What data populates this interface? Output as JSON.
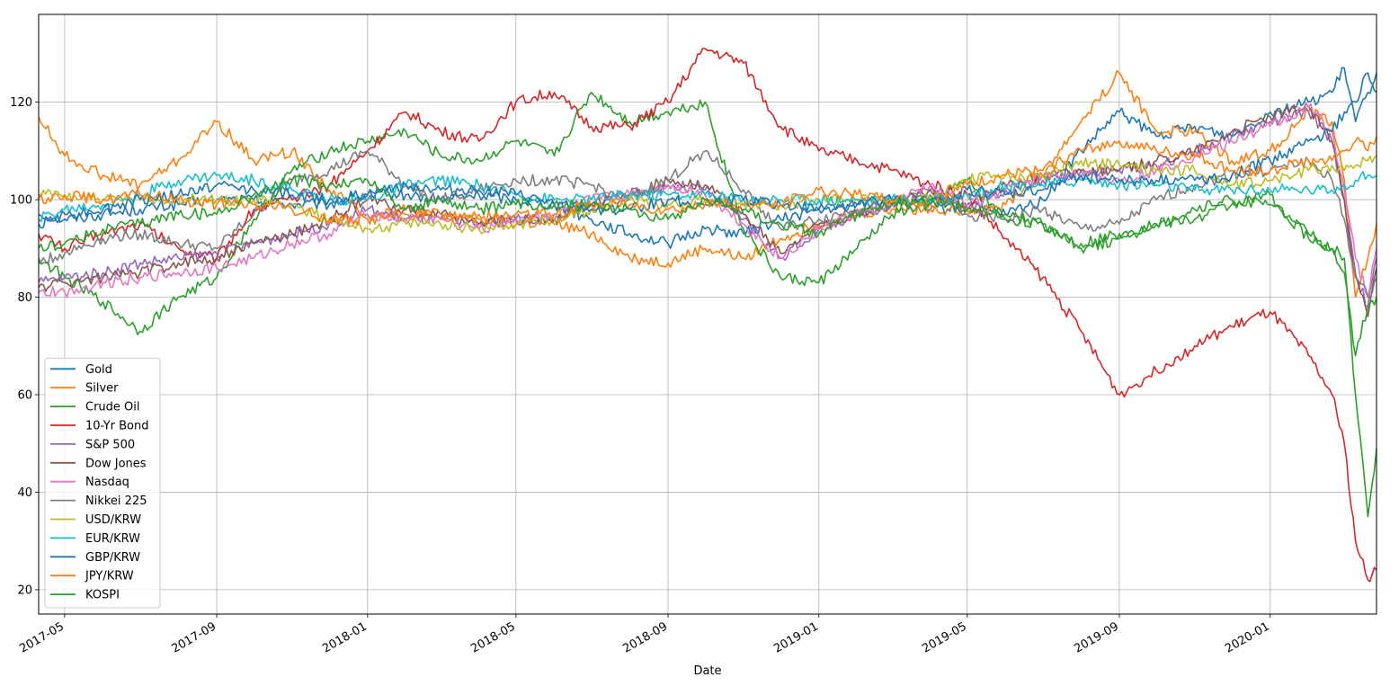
{
  "chart_data": {
    "type": "line",
    "title": "",
    "xlabel": "Date",
    "ylabel": "",
    "x_range": [
      "2017-04-10",
      "2020-03-27"
    ],
    "ylim": [
      15,
      138
    ],
    "grid": true,
    "legend_position": "lower-left",
    "x_ticks": [
      "2017-05",
      "2017-09",
      "2018-01",
      "2018-05",
      "2018-09",
      "2019-01",
      "2019-05",
      "2019-09",
      "2020-01"
    ],
    "y_ticks": [
      20,
      40,
      60,
      80,
      100,
      120
    ],
    "colors": [
      "#1f77b4",
      "#ff7f0e",
      "#2ca02c",
      "#d62728",
      "#9467bd",
      "#8c564b",
      "#e377c2",
      "#7f7f7f",
      "#bcbd22",
      "#17becf",
      "#1f77b4",
      "#ff7f0e",
      "#2ca02c"
    ],
    "dates": [
      "2017-04-10",
      "2017-05-01",
      "2017-06-01",
      "2017-07-01",
      "2017-08-01",
      "2017-09-01",
      "2017-10-01",
      "2017-11-01",
      "2017-12-01",
      "2018-01-01",
      "2018-02-01",
      "2018-03-01",
      "2018-04-01",
      "2018-05-01",
      "2018-06-01",
      "2018-07-01",
      "2018-08-01",
      "2018-09-01",
      "2018-10-01",
      "2018-11-01",
      "2018-12-01",
      "2019-01-01",
      "2019-02-01",
      "2019-03-01",
      "2019-04-01",
      "2019-05-01",
      "2019-06-01",
      "2019-07-01",
      "2019-08-01",
      "2019-09-01",
      "2019-10-01",
      "2019-11-01",
      "2019-12-01",
      "2020-01-01",
      "2020-02-01",
      "2020-02-20",
      "2020-03-01",
      "2020-03-10",
      "2020-03-20",
      "2020-03-27"
    ],
    "series": [
      {
        "name": "Gold",
        "values": [
          97,
          96,
          97,
          98,
          99,
          100,
          100,
          99,
          99,
          101,
          101,
          100,
          101,
          100,
          99,
          96,
          93,
          91,
          94,
          93,
          96,
          98,
          99,
          100,
          98,
          98,
          97,
          100,
          110,
          118,
          113,
          115,
          113,
          118,
          120,
          122,
          127,
          116,
          122,
          126
        ]
      },
      {
        "name": "Silver",
        "values": [
          117,
          109,
          105,
          103,
          108,
          116,
          108,
          110,
          102,
          97,
          98,
          96,
          97,
          95,
          95,
          93,
          88,
          87,
          90,
          88,
          92,
          95,
          97,
          98,
          98,
          98,
          99,
          105,
          116,
          126,
          114,
          114,
          108,
          110,
          118,
          116,
          104,
          80,
          88,
          95
        ]
      },
      {
        "name": "Crude Oil",
        "values": [
          88,
          84,
          79,
          73,
          80,
          84,
          96,
          106,
          110,
          112,
          114,
          109,
          108,
          112,
          109,
          122,
          116,
          118,
          120,
          94,
          84,
          83,
          90,
          97,
          99,
          104,
          96,
          95,
          91,
          93,
          95,
          96,
          99,
          101,
          92,
          90,
          88,
          60,
          35,
          49
        ]
      },
      {
        "name": "10-Yr Bond",
        "values": [
          93,
          90,
          93,
          95,
          90,
          88,
          98,
          100,
          103,
          110,
          118,
          114,
          112,
          120,
          122,
          115,
          115,
          120,
          131,
          128,
          115,
          110,
          108,
          106,
          103,
          101,
          92,
          84,
          73,
          60,
          65,
          70,
          74,
          77,
          68,
          60,
          50,
          30,
          22,
          24
        ]
      },
      {
        "name": "S&P 500",
        "values": [
          83,
          84,
          85,
          87,
          88,
          89,
          91,
          93,
          95,
          98,
          96,
          96,
          95,
          96,
          96,
          99,
          101,
          103,
          102,
          96,
          88,
          94,
          97,
          99,
          102,
          98,
          102,
          104,
          106,
          106,
          107,
          110,
          113,
          116,
          118,
          112,
          100,
          85,
          78,
          88
        ]
      },
      {
        "name": "Dow Jones",
        "values": [
          82,
          83,
          84,
          85,
          87,
          88,
          91,
          93,
          96,
          100,
          98,
          97,
          95,
          96,
          96,
          99,
          101,
          104,
          103,
          97,
          89,
          95,
          97,
          99,
          102,
          99,
          103,
          105,
          106,
          106,
          108,
          110,
          114,
          117,
          119,
          112,
          100,
          84,
          76,
          86
        ]
      },
      {
        "name": "Nasdaq",
        "values": [
          81,
          81,
          83,
          84,
          85,
          86,
          88,
          91,
          93,
          97,
          96,
          96,
          94,
          96,
          97,
          100,
          101,
          103,
          101,
          95,
          88,
          94,
          97,
          99,
          103,
          99,
          102,
          105,
          105,
          104,
          106,
          109,
          112,
          115,
          119,
          114,
          102,
          88,
          80,
          90
        ]
      },
      {
        "name": "Nikkei 225",
        "values": [
          87,
          89,
          92,
          93,
          91,
          90,
          97,
          104,
          106,
          110,
          103,
          100,
          102,
          104,
          104,
          103,
          100,
          104,
          110,
          102,
          94,
          96,
          98,
          99,
          101,
          97,
          96,
          98,
          94,
          95,
          100,
          103,
          105,
          106,
          108,
          104,
          96,
          84,
          80,
          84
        ]
      },
      {
        "name": "USD/KRW",
        "values": [
          101,
          101,
          100,
          100,
          100,
          100,
          100,
          99,
          96,
          94,
          95,
          95,
          94,
          95,
          96,
          98,
          100,
          99,
          100,
          99,
          99,
          100,
          100,
          100,
          100,
          104,
          105,
          105,
          108,
          107,
          106,
          106,
          103,
          104,
          106,
          107,
          106,
          107,
          108,
          109
        ]
      },
      {
        "name": "EUR/KRW",
        "values": [
          96,
          98,
          99,
          101,
          104,
          105,
          104,
          102,
          100,
          100,
          103,
          104,
          103,
          101,
          100,
          100,
          101,
          101,
          101,
          100,
          100,
          100,
          100,
          100,
          100,
          101,
          103,
          103,
          104,
          103,
          103,
          102,
          102,
          102,
          102,
          102,
          103,
          104,
          105,
          105
        ]
      },
      {
        "name": "GBP/KRW",
        "values": [
          95,
          97,
          98,
          100,
          101,
          103,
          102,
          101,
          100,
          101,
          103,
          102,
          102,
          101,
          99,
          98,
          98,
          100,
          99,
          100,
          99,
          98,
          99,
          100,
          99,
          102,
          101,
          102,
          105,
          104,
          104,
          104,
          105,
          108,
          112,
          114,
          118,
          120,
          126,
          122
        ]
      },
      {
        "name": "JPY/KRW",
        "values": [
          100,
          101,
          100,
          101,
          100,
          99,
          99,
          98,
          96,
          96,
          97,
          97,
          96,
          97,
          97,
          99,
          99,
          98,
          99,
          99,
          99,
          102,
          101,
          100,
          99,
          103,
          105,
          106,
          110,
          112,
          110,
          109,
          106,
          106,
          108,
          108,
          110,
          112,
          110,
          113
        ]
      },
      {
        "name": "KOSPI",
        "values": [
          90,
          91,
          94,
          95,
          97,
          97,
          101,
          104,
          103,
          104,
          98,
          100,
          98,
          99,
          99,
          99,
          98,
          96,
          100,
          98,
          95,
          93,
          97,
          99,
          100,
          98,
          97,
          95,
          90,
          92,
          95,
          98,
          100,
          99,
          93,
          90,
          85,
          68,
          78,
          80
        ]
      }
    ]
  }
}
